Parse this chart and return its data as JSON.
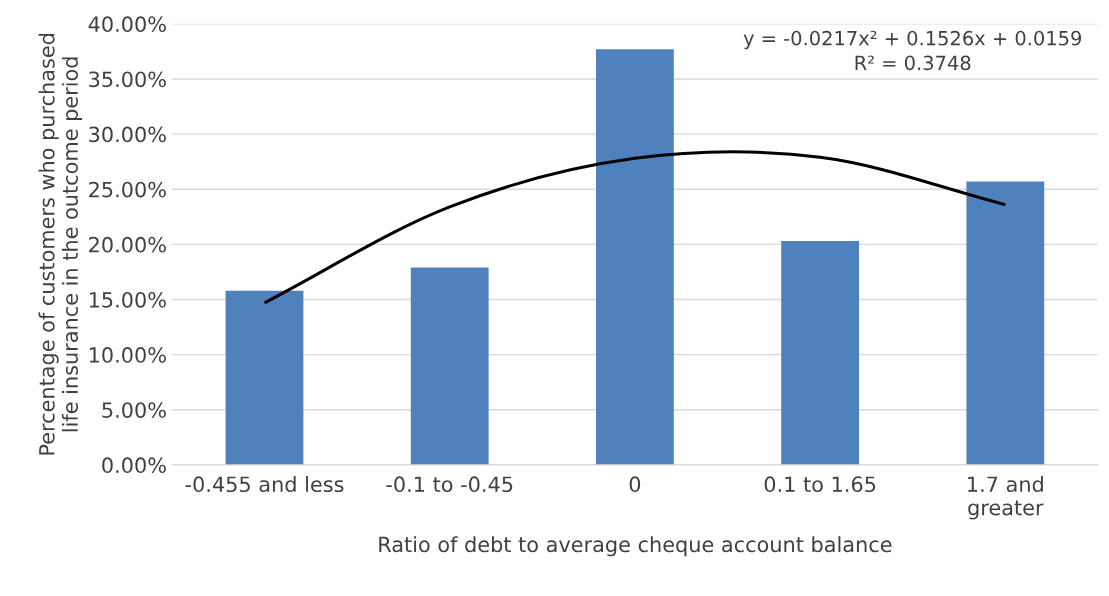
{
  "chart_data": {
    "type": "bar",
    "xlabel": "Ratio of debt to average cheque account balance",
    "ylabel": "Percentage of customers who purchased\nlife insurance in the outcome period",
    "categories": [
      "-0.455 and less",
      "-0.1 to -0.45",
      "0",
      "0.1 to 1.65",
      "1.7 and\ngreater"
    ],
    "series": [
      {
        "color": "#4f81bd",
        "values": [
          15.8,
          17.9,
          37.7,
          20.3,
          25.7
        ]
      },
      {
        "type": "line",
        "color": "#000000",
        "values": [
          14.7,
          23.4,
          27.8,
          27.9,
          23.6
        ]
      }
    ],
    "ylim": [
      0,
      40
    ],
    "yticks": [
      {
        "value": 0,
        "label": "0.00%"
      },
      {
        "value": 5,
        "label": "5.00%"
      },
      {
        "value": 10,
        "label": "10.00%"
      },
      {
        "value": 15,
        "label": "15.00%"
      },
      {
        "value": 20,
        "label": "20.00%"
      },
      {
        "value": 25,
        "label": "25.00%"
      },
      {
        "value": 30,
        "label": "30.00%"
      },
      {
        "value": 35,
        "label": "35.00%"
      },
      {
        "value": 40,
        "label": "40.00%"
      }
    ],
    "grid": "y",
    "annotations": [
      "y = -0.0217x² + 0.1526x + 0.0159\nR² = 0.3748"
    ]
  }
}
